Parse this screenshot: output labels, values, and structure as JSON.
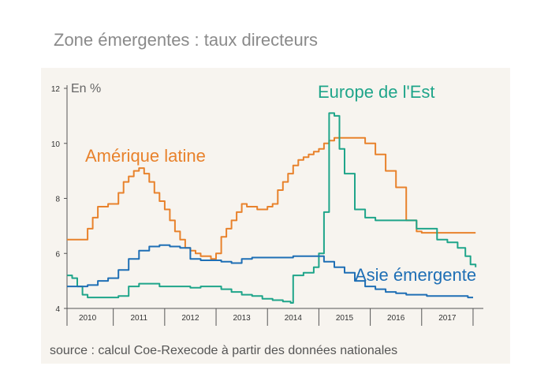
{
  "title": "Zone émergentes : taux directeurs",
  "source": "source : calcul Coe-Rexecode à partir des données nationales",
  "chart_data": {
    "type": "line",
    "title": "Zone émergentes : taux directeurs",
    "ylabel": "En %",
    "xlim": [
      2009.6,
      2017.7
    ],
    "ylim": [
      4,
      12
    ],
    "yticks": [
      "4",
      "6",
      "8",
      "10",
      "12"
    ],
    "xcategories": [
      "2010",
      "2011",
      "2012",
      "2013",
      "2014",
      "2015",
      "2016",
      "2017"
    ],
    "grid": false,
    "colors": {
      "latam": "#e8822c",
      "europe": "#1fa58a",
      "asia": "#1f6fb5"
    },
    "series": [
      {
        "name": "Amérique latine",
        "key": "latam",
        "x": [
          2009.6,
          2009.9,
          2010.0,
          2010.1,
          2010.2,
          2010.4,
          2010.5,
          2010.6,
          2010.7,
          2010.8,
          2010.9,
          2011.0,
          2011.1,
          2011.2,
          2011.3,
          2011.4,
          2011.5,
          2011.6,
          2011.7,
          2011.8,
          2011.9,
          2012.0,
          2012.1,
          2012.2,
          2012.3,
          2012.4,
          2012.5,
          2012.6,
          2012.7,
          2012.8,
          2012.9,
          2013.0,
          2013.1,
          2013.2,
          2013.3,
          2013.4,
          2013.5,
          2013.6,
          2013.7,
          2013.8,
          2013.9,
          2014.0,
          2014.1,
          2014.2,
          2014.3,
          2014.4,
          2014.5,
          2014.6,
          2014.7,
          2014.8,
          2014.9,
          2015.0,
          2015.2,
          2015.4,
          2015.6,
          2015.8,
          2016.0,
          2016.2,
          2016.4,
          2016.5,
          2016.6,
          2016.7,
          2016.8,
          2016.9,
          2017.0,
          2017.1,
          2017.2,
          2017.3,
          2017.4,
          2017.5,
          2017.55
        ],
        "values": [
          6.5,
          6.5,
          6.9,
          7.3,
          7.7,
          7.8,
          7.8,
          8.2,
          8.6,
          8.8,
          9.0,
          9.1,
          8.9,
          8.6,
          8.2,
          7.9,
          7.6,
          7.2,
          6.8,
          6.5,
          6.2,
          6.1,
          6.0,
          5.9,
          5.9,
          5.8,
          6.0,
          6.6,
          6.9,
          7.2,
          7.5,
          7.8,
          7.7,
          7.7,
          7.6,
          7.6,
          7.7,
          7.8,
          8.3,
          8.6,
          8.9,
          9.2,
          9.4,
          9.5,
          9.6,
          9.7,
          9.8,
          10.0,
          10.1,
          10.2,
          10.2,
          10.2,
          10.2,
          10.0,
          9.6,
          9.0,
          8.4,
          7.2,
          6.8,
          6.75,
          6.75,
          6.75,
          6.75,
          6.75,
          6.75,
          6.75,
          6.75,
          6.75,
          6.75,
          6.75,
          6.75
        ]
      },
      {
        "name": "Europe de l'Est",
        "key": "europe",
        "x": [
          2009.6,
          2009.7,
          2009.8,
          2009.9,
          2010.0,
          2010.2,
          2010.4,
          2010.6,
          2010.8,
          2011.0,
          2011.2,
          2011.4,
          2011.6,
          2011.8,
          2012.0,
          2012.2,
          2012.4,
          2012.6,
          2012.8,
          2013.0,
          2013.2,
          2013.4,
          2013.6,
          2013.8,
          2013.95,
          2014.0,
          2014.2,
          2014.4,
          2014.5,
          2014.6,
          2014.7,
          2014.8,
          2014.9,
          2015.0,
          2015.2,
          2015.4,
          2015.6,
          2015.8,
          2016.0,
          2016.2,
          2016.4,
          2016.6,
          2016.8,
          2017.0,
          2017.2,
          2017.35,
          2017.45,
          2017.55
        ],
        "values": [
          5.2,
          5.1,
          4.8,
          4.5,
          4.4,
          4.4,
          4.4,
          4.45,
          4.8,
          4.9,
          4.9,
          4.8,
          4.8,
          4.8,
          4.75,
          4.8,
          4.8,
          4.7,
          4.6,
          4.5,
          4.45,
          4.35,
          4.3,
          4.25,
          4.2,
          5.2,
          5.3,
          5.5,
          6.0,
          7.5,
          11.1,
          11.0,
          9.8,
          8.9,
          7.6,
          7.3,
          7.2,
          7.2,
          7.2,
          7.2,
          6.9,
          6.9,
          6.5,
          6.4,
          6.2,
          5.9,
          5.6,
          5.5
        ]
      },
      {
        "name": "Asie émergente",
        "key": "asia",
        "x": [
          2009.6,
          2009.9,
          2010.0,
          2010.2,
          2010.4,
          2010.6,
          2010.8,
          2011.0,
          2011.2,
          2011.4,
          2011.6,
          2011.8,
          2012.0,
          2012.2,
          2012.4,
          2012.6,
          2012.8,
          2013.0,
          2013.2,
          2013.4,
          2013.6,
          2013.8,
          2014.0,
          2014.2,
          2014.4,
          2014.6,
          2014.8,
          2015.0,
          2015.2,
          2015.4,
          2015.6,
          2015.8,
          2016.0,
          2016.2,
          2016.4,
          2016.6,
          2016.8,
          2017.0,
          2017.2,
          2017.4,
          2017.5
        ],
        "values": [
          4.8,
          4.8,
          4.85,
          5.0,
          5.1,
          5.4,
          5.8,
          6.1,
          6.25,
          6.3,
          6.25,
          6.2,
          5.8,
          5.75,
          5.75,
          5.7,
          5.65,
          5.8,
          5.85,
          5.85,
          5.85,
          5.85,
          5.9,
          5.9,
          5.9,
          5.7,
          5.5,
          5.3,
          5.0,
          4.8,
          4.7,
          4.6,
          4.55,
          4.5,
          4.5,
          4.45,
          4.45,
          4.45,
          4.45,
          4.4,
          4.4
        ]
      }
    ]
  }
}
